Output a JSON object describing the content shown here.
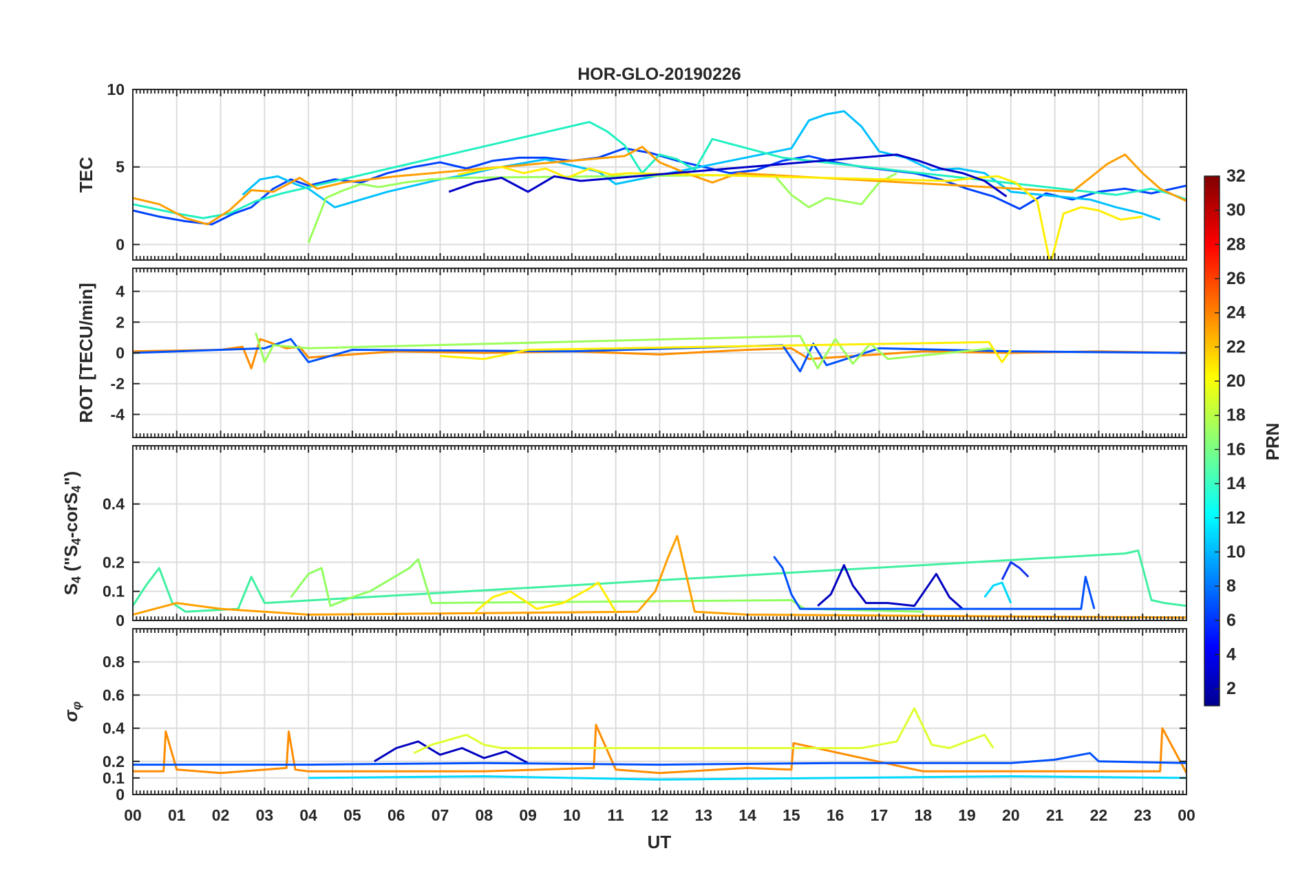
{
  "title": "HOR-GLO-20190226",
  "x_axis": {
    "label": "UT",
    "tick_labels": [
      "00",
      "01",
      "02",
      "03",
      "04",
      "05",
      "06",
      "07",
      "08",
      "09",
      "10",
      "11",
      "12",
      "13",
      "14",
      "15",
      "16",
      "17",
      "18",
      "19",
      "20",
      "21",
      "22",
      "23",
      "00"
    ]
  },
  "colorbar": {
    "label": "PRN",
    "range": [
      1,
      32
    ],
    "ticks": [
      2,
      4,
      6,
      8,
      10,
      12,
      14,
      16,
      18,
      20,
      22,
      24,
      26,
      28,
      30,
      32
    ],
    "colormap": "jet"
  },
  "chart_data": [
    {
      "type": "line",
      "panel": "TEC",
      "ylabel": "TEC",
      "ylim": [
        -1,
        10
      ],
      "yticks": [
        0,
        5,
        10
      ],
      "grid": true,
      "x_unit": "UT hours",
      "series": [
        {
          "prn": 4,
          "color": "#0040ff",
          "x": [
            0.0,
            0.6,
            1.2,
            1.8,
            2.3,
            2.7,
            3.2,
            3.6,
            4.0,
            4.6,
            5.2,
            5.8,
            6.4,
            7.0,
            7.6,
            8.2,
            8.8,
            9.4,
            10.0,
            10.6,
            11.2,
            11.8,
            12.4,
            13.0,
            13.6,
            14.2,
            14.8,
            15.4,
            16.0,
            16.6,
            17.2,
            17.8,
            18.4,
            19.0,
            19.6,
            20.2,
            20.8,
            21.4,
            22.0,
            22.6,
            23.2,
            24.0
          ],
          "y": [
            2.2,
            1.8,
            1.5,
            1.3,
            2.0,
            2.4,
            3.6,
            4.2,
            3.8,
            4.2,
            4.0,
            4.6,
            5.0,
            5.3,
            4.9,
            5.4,
            5.6,
            5.6,
            5.4,
            5.6,
            6.2,
            5.9,
            5.4,
            5.0,
            4.6,
            4.8,
            5.4,
            5.7,
            5.3,
            5.0,
            4.8,
            4.6,
            4.2,
            3.6,
            3.1,
            2.3,
            3.3,
            2.9,
            3.4,
            3.6,
            3.3,
            3.8
          ]
        },
        {
          "prn": 12,
          "color": "#00c0ff",
          "x": [
            2.5,
            2.9,
            3.3,
            3.7,
            4.0,
            4.6,
            5.2,
            5.8,
            6.4,
            7.0,
            7.6,
            8.2,
            8.8,
            9.4,
            10.0,
            10.6,
            11.0,
            15.0,
            15.4,
            15.8,
            16.2,
            16.6,
            17.0,
            17.6,
            18.2,
            18.8,
            19.4,
            20.0,
            21.8,
            22.4,
            23.0,
            23.4
          ],
          "y": [
            3.2,
            4.2,
            4.4,
            3.9,
            3.6,
            2.4,
            2.9,
            3.4,
            3.8,
            4.2,
            4.5,
            4.9,
            5.2,
            5.5,
            5.1,
            4.7,
            3.9,
            6.2,
            8.0,
            8.4,
            8.6,
            7.6,
            6.0,
            5.6,
            4.8,
            4.9,
            4.6,
            3.4,
            2.9,
            2.4,
            2.0,
            1.6
          ]
        },
        {
          "prn": 14,
          "color": "#20f0c0",
          "x": [
            0.0,
            0.5,
            1.0,
            1.6,
            2.2,
            2.8,
            3.4,
            10.4,
            10.8,
            11.2,
            11.6,
            12.0,
            12.4,
            12.8,
            13.2,
            13.6,
            14.0,
            14.4,
            14.8,
            22.4,
            22.8,
            23.2,
            23.6,
            24.0
          ],
          "y": [
            2.6,
            2.3,
            2.0,
            1.7,
            2.0,
            2.8,
            3.3,
            7.9,
            7.3,
            6.4,
            4.6,
            5.8,
            5.5,
            4.8,
            6.8,
            6.5,
            6.2,
            5.9,
            5.6,
            3.2,
            3.4,
            3.6,
            3.3,
            2.9
          ]
        },
        {
          "prn": 17,
          "color": "#9cff5a",
          "x": [
            4.0,
            4.4,
            4.8,
            5.2,
            5.6,
            6.2,
            6.8,
            7.4,
            14.6,
            15.0,
            15.4,
            15.8,
            16.2,
            16.6,
            17.0,
            17.4
          ],
          "y": [
            0.1,
            3.0,
            3.5,
            3.9,
            3.7,
            4.0,
            4.2,
            4.3,
            4.5,
            3.2,
            2.4,
            3.0,
            2.8,
            2.6,
            4.0,
            4.6
          ]
        },
        {
          "prn": 22,
          "color": "#ff9e00",
          "x": [
            0.0,
            0.6,
            1.2,
            1.7,
            2.2,
            2.7,
            3.2,
            3.8,
            4.2,
            4.8,
            5.4,
            6.0,
            11.2,
            11.6,
            12.0,
            12.6,
            13.2,
            13.8,
            14.4,
            21.4,
            21.8,
            22.2,
            22.6,
            23.0,
            23.4,
            24.0
          ],
          "y": [
            3.0,
            2.6,
            1.7,
            1.3,
            2.2,
            3.5,
            3.4,
            4.3,
            3.6,
            4.0,
            4.2,
            4.4,
            5.7,
            6.3,
            5.3,
            4.6,
            4.0,
            4.6,
            4.5,
            3.4,
            4.3,
            5.2,
            5.8,
            4.6,
            3.6,
            2.8
          ]
        },
        {
          "prn": 20,
          "color": "#ffee00",
          "x": [
            7.4,
            7.9,
            8.4,
            8.9,
            9.4,
            9.9,
            10.4,
            10.9,
            11.3,
            18.6,
            19.2,
            19.7,
            20.1,
            20.6,
            20.9,
            21.2,
            21.6,
            22.0,
            22.5,
            23.0
          ],
          "y": [
            4.5,
            4.8,
            5.0,
            4.6,
            4.9,
            4.3,
            4.9,
            4.5,
            4.6,
            4.1,
            4.3,
            4.4,
            4.0,
            2.8,
            -1.3,
            2.0,
            2.4,
            2.2,
            1.6,
            1.8
          ]
        },
        {
          "prn": 2,
          "color": "#0000c8",
          "x": [
            7.2,
            7.8,
            8.4,
            9.0,
            9.6,
            10.2,
            17.4,
            17.9,
            18.4,
            18.9,
            19.4,
            19.9
          ],
          "y": [
            3.4,
            4.0,
            4.3,
            3.4,
            4.4,
            4.1,
            5.8,
            5.4,
            4.9,
            4.6,
            4.1,
            3.1
          ]
        }
      ]
    },
    {
      "type": "line",
      "panel": "ROT",
      "ylabel": "ROT [TECU/min]",
      "ylim": [
        -5.5,
        5.5
      ],
      "yticks": [
        -4,
        -2,
        0,
        2,
        4
      ],
      "grid": true,
      "description_of_values": "noise band around 0",
      "series": [
        {
          "prn": 22,
          "color": "#ff8c00",
          "x": [
            0.0,
            2.0,
            2.5,
            2.7,
            2.9,
            3.5,
            3.8,
            4.0,
            6.0,
            8.0,
            10.0,
            12.0,
            14.0,
            15.0,
            15.4,
            18.0,
            20.0,
            22.0,
            24.0
          ],
          "y": [
            0.1,
            0.2,
            0.4,
            -1.0,
            0.9,
            0.3,
            0.4,
            -0.3,
            0.1,
            0.0,
            0.1,
            -0.1,
            0.2,
            0.3,
            -0.4,
            0.1,
            0.0,
            0.1,
            0.0
          ]
        },
        {
          "prn": 6,
          "color": "#0050ff",
          "x": [
            0.0,
            3.0,
            3.6,
            4.0,
            5.0,
            10.0,
            14.8,
            15.2,
            15.5,
            15.8,
            17.0,
            20.0,
            24.0
          ],
          "y": [
            0.0,
            0.3,
            0.9,
            -0.6,
            0.2,
            0.1,
            0.5,
            -1.2,
            0.6,
            -0.8,
            0.3,
            0.1,
            0.0
          ]
        },
        {
          "prn": 17,
          "color": "#9cff5a",
          "x": [
            2.8,
            3.0,
            3.2,
            4.0,
            15.2,
            15.6,
            16.0,
            16.4,
            16.8,
            17.2,
            19.6
          ],
          "y": [
            1.3,
            -0.6,
            0.5,
            0.3,
            1.1,
            -1.0,
            0.9,
            -0.7,
            0.6,
            -0.4,
            0.3
          ]
        },
        {
          "prn": 20,
          "color": "#ffee00",
          "x": [
            7.0,
            8.0,
            9.0,
            19.5,
            19.8,
            20.0
          ],
          "y": [
            -0.2,
            -0.4,
            0.2,
            0.7,
            -0.6,
            0.2
          ]
        }
      ]
    },
    {
      "type": "line",
      "panel": "S4",
      "ylabel": "S4 (\"S4-corS4\")",
      "ylim": [
        0,
        0.6
      ],
      "yticks": [
        0,
        0.1,
        0.2,
        0.4
      ],
      "grid": true,
      "series": [
        {
          "prn": 14,
          "color": "#40f0a0",
          "x": [
            0.0,
            0.3,
            0.6,
            0.9,
            1.2,
            2.4,
            2.7,
            3.0,
            22.6,
            22.9,
            23.2,
            23.5,
            24.0
          ],
          "y": [
            0.05,
            0.12,
            0.18,
            0.06,
            0.03,
            0.04,
            0.15,
            0.06,
            0.23,
            0.24,
            0.07,
            0.06,
            0.05
          ]
        },
        {
          "prn": 17,
          "color": "#90ff60",
          "x": [
            3.6,
            4.0,
            4.3,
            4.5,
            5.0,
            5.4,
            6.3,
            6.5,
            6.8,
            15.0,
            15.3,
            18.0
          ],
          "y": [
            0.08,
            0.16,
            0.18,
            0.05,
            0.08,
            0.1,
            0.18,
            0.21,
            0.06,
            0.07,
            0.04,
            0.03
          ]
        },
        {
          "prn": 22,
          "color": "#ffa000",
          "x": [
            0.0,
            1.0,
            2.0,
            3.0,
            4.0,
            11.5,
            11.9,
            12.2,
            12.4,
            12.8,
            14.0,
            24.0
          ],
          "y": [
            0.02,
            0.06,
            0.04,
            0.03,
            0.02,
            0.03,
            0.1,
            0.22,
            0.29,
            0.03,
            0.02,
            0.01
          ]
        },
        {
          "prn": 20,
          "color": "#ffee00",
          "x": [
            7.8,
            8.2,
            8.6,
            9.2,
            9.8,
            10.4,
            10.6,
            11.0
          ],
          "y": [
            0.03,
            0.08,
            0.1,
            0.04,
            0.06,
            0.11,
            0.13,
            0.03
          ]
        },
        {
          "prn": 2,
          "color": "#0000c0",
          "x": [
            15.6,
            15.9,
            16.2,
            16.4,
            16.7,
            17.2,
            17.8,
            18.3,
            18.6,
            18.9
          ],
          "y": [
            0.05,
            0.09,
            0.19,
            0.12,
            0.06,
            0.06,
            0.05,
            0.16,
            0.08,
            0.04
          ]
        },
        {
          "prn": 6,
          "color": "#0050ff",
          "x": [
            14.6,
            14.8,
            15.0,
            15.2,
            21.6,
            21.7,
            21.9
          ],
          "y": [
            0.22,
            0.18,
            0.09,
            0.04,
            0.04,
            0.15,
            0.04
          ]
        },
        {
          "prn": 5,
          "color": "#1030f0",
          "x": [
            19.8,
            20.0,
            20.2,
            20.4
          ],
          "y": [
            0.14,
            0.2,
            0.18,
            0.15
          ]
        },
        {
          "prn": 12,
          "color": "#00d8ff",
          "x": [
            19.4,
            19.6,
            19.8,
            20.0
          ],
          "y": [
            0.08,
            0.12,
            0.13,
            0.06
          ]
        }
      ]
    },
    {
      "type": "line",
      "panel": "sigma_phi",
      "ylabel": "σφ",
      "ylim": [
        0,
        1.0
      ],
      "yticks": [
        0,
        0.1,
        0.2,
        0.4,
        0.6,
        0.8
      ],
      "grid": true,
      "series": [
        {
          "prn": 22,
          "color": "#ff8c00",
          "x": [
            0.0,
            0.7,
            0.75,
            1.0,
            2.0,
            3.5,
            3.55,
            3.7,
            4.0,
            8.0,
            10.5,
            10.55,
            11.0,
            12.0,
            14.0,
            15.0,
            15.05,
            18.0,
            23.4,
            23.45,
            24.0
          ],
          "y": [
            0.14,
            0.14,
            0.38,
            0.15,
            0.13,
            0.16,
            0.38,
            0.15,
            0.14,
            0.14,
            0.16,
            0.42,
            0.15,
            0.13,
            0.16,
            0.15,
            0.31,
            0.14,
            0.14,
            0.4,
            0.13
          ]
        },
        {
          "prn": 2,
          "color": "#0000c0",
          "x": [
            5.5,
            6.0,
            6.5,
            7.0,
            7.5,
            8.0,
            8.5,
            9.0
          ],
          "y": [
            0.2,
            0.28,
            0.32,
            0.24,
            0.28,
            0.22,
            0.26,
            0.19
          ]
        },
        {
          "prn": 19,
          "color": "#e0ff30",
          "x": [
            6.4,
            6.8,
            7.2,
            7.6,
            8.0,
            8.4,
            16.6,
            17.0,
            17.4,
            17.8,
            18.2,
            18.6,
            19.0,
            19.4,
            19.6
          ],
          "y": [
            0.25,
            0.3,
            0.33,
            0.36,
            0.3,
            0.28,
            0.28,
            0.3,
            0.32,
            0.52,
            0.3,
            0.28,
            0.32,
            0.36,
            0.28
          ]
        },
        {
          "prn": 6,
          "color": "#0050ff",
          "x": [
            0.0,
            4.0,
            8.0,
            12.0,
            16.0,
            20.0,
            21.0,
            21.8,
            22.0,
            24.0
          ],
          "y": [
            0.18,
            0.18,
            0.19,
            0.18,
            0.19,
            0.19,
            0.21,
            0.25,
            0.2,
            0.19
          ]
        },
        {
          "prn": 12,
          "color": "#00d8ff",
          "x": [
            4.0,
            8.0,
            12.0,
            16.0,
            20.0,
            24.0
          ],
          "y": [
            0.1,
            0.11,
            0.09,
            0.1,
            0.11,
            0.1
          ]
        }
      ]
    }
  ]
}
